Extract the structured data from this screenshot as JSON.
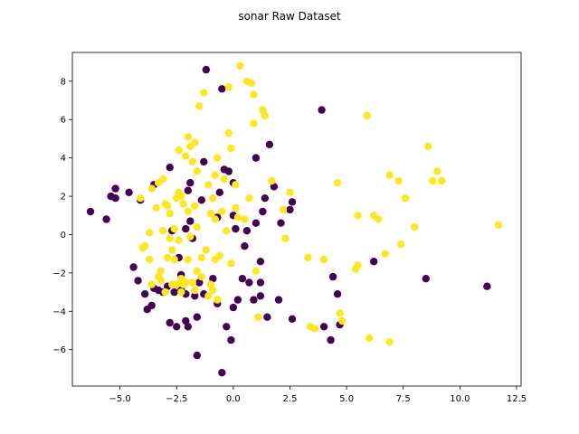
{
  "chart_data": {
    "type": "scatter",
    "title": "sonar Raw Dataset",
    "xlabel": "",
    "ylabel": "",
    "xlim": [
      -7.1,
      12.7
    ],
    "ylim": [
      -7.9,
      9.5
    ],
    "xticks": [
      -5.0,
      -2.5,
      0.0,
      2.5,
      5.0,
      7.5,
      10.0,
      12.5
    ],
    "xtick_labels": [
      "−5.0",
      "−2.5",
      "0.0",
      "2.5",
      "5.0",
      "7.5",
      "10.0",
      "12.5"
    ],
    "yticks": [
      -6,
      -4,
      -2,
      0,
      2,
      4,
      6,
      8
    ],
    "ytick_labels": [
      "−6",
      "−4",
      "−2",
      "0",
      "2",
      "4",
      "6",
      "8"
    ],
    "grid": false,
    "series": [
      {
        "color": "#440154",
        "points": [
          [
            -6.3,
            1.2
          ],
          [
            -5.6,
            0.8
          ],
          [
            -5.4,
            2.0
          ],
          [
            -5.2,
            1.9
          ],
          [
            -5.2,
            2.4
          ],
          [
            -4.6,
            2.2
          ],
          [
            -4.4,
            -1.7
          ],
          [
            -4.2,
            -2.4
          ],
          [
            -4.1,
            1.8
          ],
          [
            -3.9,
            -3.1
          ],
          [
            -3.8,
            -3.9
          ],
          [
            -3.6,
            -3.7
          ],
          [
            -3.5,
            -2.8
          ],
          [
            -3.5,
            2.6
          ],
          [
            -3.3,
            -2.9
          ],
          [
            -3.1,
            -3.0
          ],
          [
            -2.9,
            -2.7
          ],
          [
            -2.8,
            -4.6
          ],
          [
            -2.8,
            3.5
          ],
          [
            -2.7,
            0.2
          ],
          [
            -2.6,
            -3.0
          ],
          [
            -2.5,
            -4.8
          ],
          [
            -2.4,
            -1.2
          ],
          [
            -2.3,
            -2.1
          ],
          [
            -2.3,
            -2.9
          ],
          [
            -2.1,
            -4.5
          ],
          [
            -2.1,
            -3.1
          ],
          [
            -2.1,
            0.3
          ],
          [
            -2.0,
            -4.8
          ],
          [
            -2.0,
            2.3
          ],
          [
            -1.9,
            0.7
          ],
          [
            -1.9,
            2.7
          ],
          [
            -1.8,
            -0.2
          ],
          [
            -1.7,
            -3.2
          ],
          [
            -1.6,
            -4.3
          ],
          [
            -1.6,
            -6.3
          ],
          [
            -1.5,
            -2.5
          ],
          [
            -1.4,
            1.8
          ],
          [
            -1.3,
            -3.1
          ],
          [
            -1.3,
            3.8
          ],
          [
            -1.2,
            8.6
          ],
          [
            -0.9,
            -2.3
          ],
          [
            -0.7,
            -3.6
          ],
          [
            -0.7,
            0.9
          ],
          [
            -0.6,
            2.2
          ],
          [
            -0.5,
            7.6
          ],
          [
            -0.5,
            -7.2
          ],
          [
            -0.4,
            3.4
          ],
          [
            -0.3,
            -4.8
          ],
          [
            -0.2,
            3.3
          ],
          [
            -0.1,
            -5.5
          ],
          [
            0.0,
            1.0
          ],
          [
            0.0,
            2.7
          ],
          [
            0.0,
            -3.8
          ],
          [
            0.1,
            0.3
          ],
          [
            0.2,
            -3.4
          ],
          [
            0.4,
            -2.3
          ],
          [
            0.5,
            -0.6
          ],
          [
            0.6,
            0.2
          ],
          [
            0.7,
            -2.5
          ],
          [
            0.9,
            -3.4
          ],
          [
            1.0,
            0.6
          ],
          [
            1.0,
            4.0
          ],
          [
            1.2,
            -1.4
          ],
          [
            1.2,
            -2.5
          ],
          [
            1.2,
            -3.2
          ],
          [
            1.3,
            1.2
          ],
          [
            1.4,
            1.9
          ],
          [
            1.5,
            -4.3
          ],
          [
            1.6,
            4.7
          ],
          [
            1.8,
            2.5
          ],
          [
            2.0,
            -3.4
          ],
          [
            2.1,
            0.6
          ],
          [
            2.5,
            1.3
          ],
          [
            2.6,
            1.7
          ],
          [
            2.6,
            -4.4
          ],
          [
            3.9,
            6.5
          ],
          [
            4.0,
            -4.8
          ],
          [
            4.3,
            -5.5
          ],
          [
            4.4,
            -2.2
          ],
          [
            4.6,
            -3.1
          ],
          [
            4.7,
            -4.7
          ],
          [
            6.2,
            -1.4
          ],
          [
            8.5,
            -2.3
          ],
          [
            11.2,
            -2.7
          ]
        ]
      },
      {
        "color": "#fde725",
        "points": [
          [
            -4.1,
            1.9
          ],
          [
            -4.0,
            -0.7
          ],
          [
            -3.9,
            -0.6
          ],
          [
            -3.7,
            0.1
          ],
          [
            -3.7,
            -1.3
          ],
          [
            -3.6,
            2.4
          ],
          [
            -3.6,
            -2.6
          ],
          [
            -3.4,
            1.4
          ],
          [
            -3.3,
            2.7
          ],
          [
            -3.3,
            -2.2
          ],
          [
            -3.2,
            -2.4
          ],
          [
            -3.2,
            -1.9
          ],
          [
            -3.1,
            2.9
          ],
          [
            -3.1,
            0.2
          ],
          [
            -3.0,
            1.6
          ],
          [
            -3.0,
            -3.0
          ],
          [
            -2.9,
            1.5
          ],
          [
            -2.9,
            -1.2
          ],
          [
            -2.8,
            1.1
          ],
          [
            -2.8,
            -0.2
          ],
          [
            -2.7,
            -0.8
          ],
          [
            -2.7,
            -2.6
          ],
          [
            -2.6,
            0.3
          ],
          [
            -2.6,
            -1.3
          ],
          [
            -2.5,
            1.9
          ],
          [
            -2.5,
            -2.6
          ],
          [
            -2.4,
            2.2
          ],
          [
            -2.4,
            4.4
          ],
          [
            -2.4,
            -0.3
          ],
          [
            -2.3,
            2.0
          ],
          [
            -2.3,
            -2.3
          ],
          [
            -2.3,
            -3.0
          ],
          [
            -2.2,
            1.6
          ],
          [
            -2.2,
            -2.6
          ],
          [
            -2.1,
            4.1
          ],
          [
            -2.1,
            -2.5
          ],
          [
            -2.0,
            1.2
          ],
          [
            -2.0,
            -1.3
          ],
          [
            -2.0,
            5.1
          ],
          [
            -1.9,
            4.6
          ],
          [
            -1.9,
            -0.1
          ],
          [
            -1.8,
            3.8
          ],
          [
            -1.8,
            -2.5
          ],
          [
            -1.7,
            -2.9
          ],
          [
            -1.7,
            1.5
          ],
          [
            -1.7,
            4.8
          ],
          [
            -1.6,
            3.3
          ],
          [
            -1.6,
            -1.9
          ],
          [
            -1.6,
            0.4
          ],
          [
            -1.5,
            6.7
          ],
          [
            -1.4,
            -1.2
          ],
          [
            -1.4,
            -2.2
          ],
          [
            -1.3,
            7.4
          ],
          [
            -1.2,
            -0.8
          ],
          [
            -1.1,
            2.6
          ],
          [
            -1.1,
            -3.2
          ],
          [
            -1.0,
            1.1
          ],
          [
            -1.0,
            -2.6
          ],
          [
            -0.9,
            1.9
          ],
          [
            -0.9,
            -2.9
          ],
          [
            -0.8,
            3.1
          ],
          [
            -0.8,
            0.8
          ],
          [
            -0.8,
            -1.3
          ],
          [
            -0.7,
            4.0
          ],
          [
            -0.7,
            -3.4
          ],
          [
            -0.6,
            -1.1
          ],
          [
            -0.5,
            1.2
          ],
          [
            -0.4,
            2.9
          ],
          [
            -0.3,
            0.2
          ],
          [
            -0.2,
            7.7
          ],
          [
            -0.2,
            5.3
          ],
          [
            -0.1,
            -1.5
          ],
          [
            -0.1,
            4.5
          ],
          [
            0.1,
            2.6
          ],
          [
            0.1,
            1.4
          ],
          [
            0.2,
            0.9
          ],
          [
            0.3,
            8.8
          ],
          [
            0.5,
            0.8
          ],
          [
            0.6,
            8.0
          ],
          [
            0.7,
            1.9
          ],
          [
            0.8,
            7.9
          ],
          [
            0.9,
            7.3
          ],
          [
            0.9,
            5.8
          ],
          [
            1.0,
            -1.9
          ],
          [
            1.1,
            -4.3
          ],
          [
            1.3,
            6.5
          ],
          [
            1.4,
            6.2
          ],
          [
            1.7,
            2.8
          ],
          [
            2.2,
            1.3
          ],
          [
            2.3,
            -0.2
          ],
          [
            2.5,
            2.2
          ],
          [
            3.3,
            -1.2
          ],
          [
            3.4,
            -4.8
          ],
          [
            3.6,
            -4.9
          ],
          [
            4.0,
            -1.3
          ],
          [
            4.6,
            2.7
          ],
          [
            4.7,
            -4.1
          ],
          [
            4.8,
            -4.5
          ],
          [
            5.4,
            -1.8
          ],
          [
            5.5,
            -1.6
          ],
          [
            5.5,
            1.0
          ],
          [
            5.9,
            6.2
          ],
          [
            6.0,
            -5.4
          ],
          [
            6.2,
            1.0
          ],
          [
            6.4,
            0.8
          ],
          [
            6.7,
            -1.0
          ],
          [
            6.9,
            -5.6
          ],
          [
            6.9,
            3.1
          ],
          [
            7.3,
            2.8
          ],
          [
            7.4,
            -0.5
          ],
          [
            7.6,
            1.9
          ],
          [
            8.0,
            0.4
          ],
          [
            8.6,
            4.6
          ],
          [
            8.8,
            2.8
          ],
          [
            9.0,
            3.3
          ],
          [
            9.2,
            2.8
          ],
          [
            11.7,
            0.5
          ]
        ]
      }
    ]
  }
}
